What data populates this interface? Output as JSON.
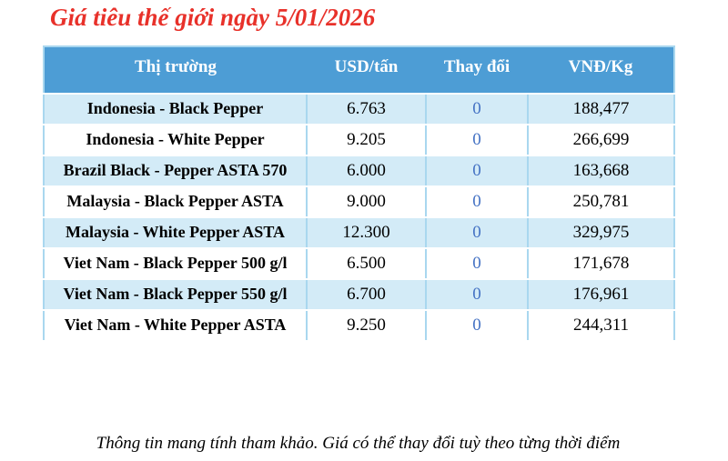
{
  "title": "Giá tiêu thế giới ngày 5/01/2026",
  "footer": "Thông tin mang tính tham khảo. Giá có thể thay đổi tuỳ theo từng thời điểm",
  "colors": {
    "title_red": "#e8312a",
    "header_bg": "#4d9dd5",
    "header_text": "#ffffff",
    "row_alt_bg": "#d3ebf7",
    "row_bg": "#ffffff",
    "border": "#a9d7ef",
    "change_blue": "#4472c4",
    "text": "#000000"
  },
  "table": {
    "columns": [
      "Thị trường",
      "USD/tấn",
      "Thay đổi",
      "VNĐ/Kg"
    ],
    "rows": [
      {
        "market": "Indonesia - Black Pepper",
        "usd": "6.763",
        "change": "0",
        "vnd": "188,477"
      },
      {
        "market": "Indonesia - White Pepper",
        "usd": "9.205",
        "change": "0",
        "vnd": "266,699"
      },
      {
        "market": "Brazil Black - Pepper ASTA 570",
        "usd": "6.000",
        "change": "0",
        "vnd": "163,668"
      },
      {
        "market": "Malaysia - Black Pepper ASTA",
        "usd": "9.000",
        "change": "0",
        "vnd": "250,781"
      },
      {
        "market": "Malaysia - White Pepper ASTA",
        "usd": "12.300",
        "change": "0",
        "vnd": "329,975"
      },
      {
        "market": "Viet Nam - Black Pepper 500 g/l",
        "usd": "6.500",
        "change": "0",
        "vnd": "171,678"
      },
      {
        "market": "Viet Nam - Black Pepper 550 g/l",
        "usd": "6.700",
        "change": "0",
        "vnd": "176,961"
      },
      {
        "market": "Viet Nam - White Pepper ASTA",
        "usd": "9.250",
        "change": "0",
        "vnd": "244,311"
      }
    ]
  }
}
